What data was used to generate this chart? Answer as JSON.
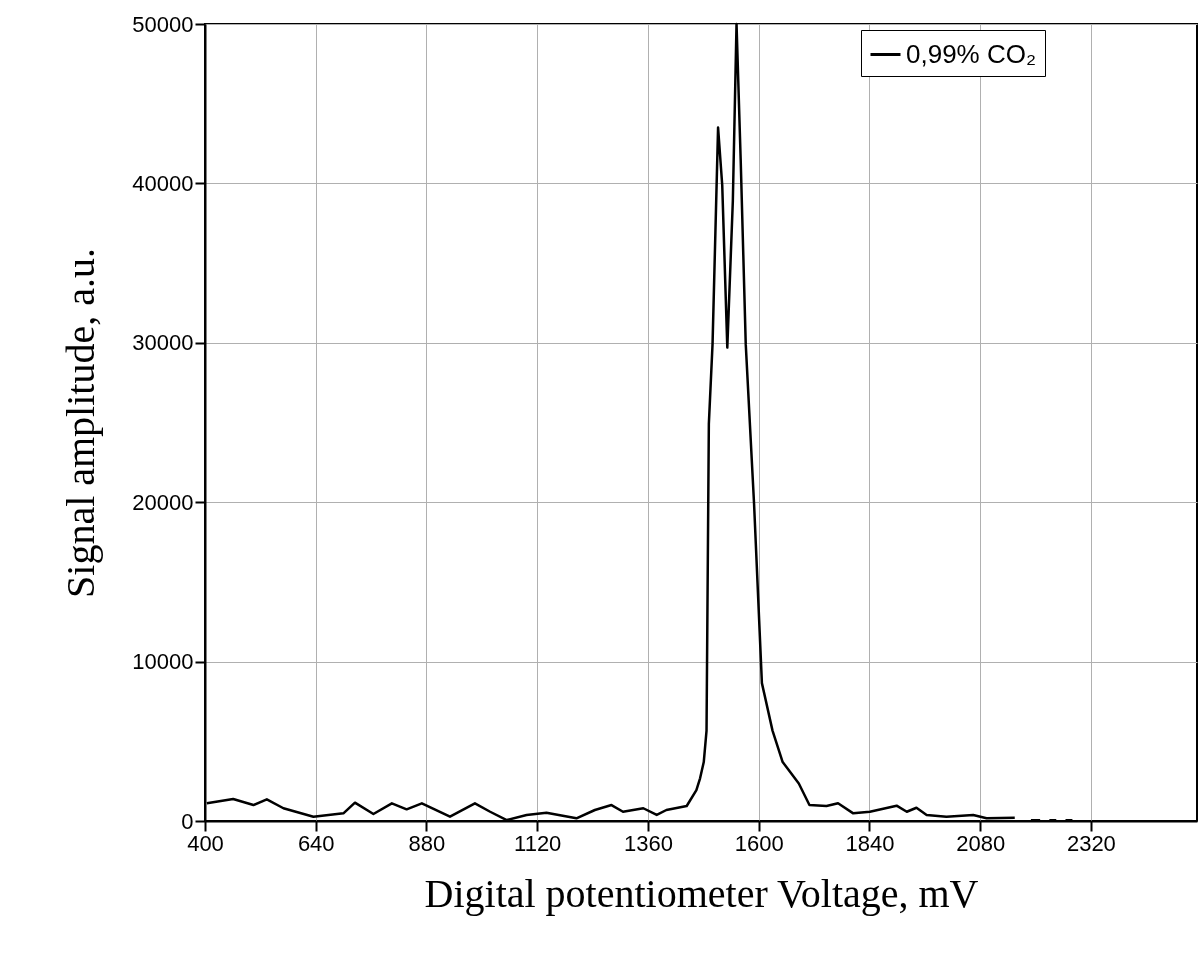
{
  "chart_data": {
    "type": "line",
    "xlabel": "Digital potentiometer Voltage, mV",
    "ylabel": "Signal amplitude, a.u.",
    "x": [
      404,
      461,
      505,
      534,
      570,
      635,
      700,
      725,
      765,
      805,
      837,
      870,
      931,
      985,
      1018,
      1054,
      1097,
      1140,
      1205,
      1245,
      1281,
      1306,
      1350,
      1379,
      1400,
      1444,
      1465,
      1473,
      1481,
      1487,
      1492,
      1500,
      1512,
      1521,
      1532,
      1544,
      1552,
      1561,
      1572,
      1590,
      1607,
      1630,
      1652,
      1687,
      1710,
      1747,
      1772,
      1805,
      1841,
      1899,
      1921,
      1942,
      1964,
      2007,
      2065,
      2094,
      2155,
      2170,
      2190,
      2210,
      2220,
      2230,
      2245,
      2255,
      2265,
      2280
    ],
    "series": [
      {
        "name": "0,99% CO₂",
        "color": "#000000",
        "values": [
          1110,
          1380,
          1000,
          1360,
          800,
          270,
          480,
          1150,
          440,
          1110,
          730,
          1110,
          270,
          1110,
          580,
          60,
          380,
          520,
          170,
          690,
          1000,
          580,
          800,
          380,
          690,
          940,
          1940,
          2680,
          3700,
          5670,
          24900,
          29900,
          43500,
          39900,
          29700,
          38900,
          50000,
          41500,
          29900,
          19900,
          8650,
          5670,
          3700,
          2350,
          1000,
          940,
          1110,
          480,
          580,
          960,
          580,
          830,
          380,
          270,
          380,
          170,
          210,
          null,
          50,
          50,
          null,
          50,
          50,
          null,
          50,
          50
        ]
      }
    ],
    "xlim": [
      400,
      2550
    ],
    "xticks": [
      400,
      640,
      880,
      1120,
      1360,
      1600,
      1840,
      2080,
      2320
    ],
    "ylim": [
      0,
      50000
    ],
    "yticks": [
      0,
      10000,
      20000,
      30000,
      40000,
      50000
    ],
    "grid": true,
    "legend": "top right",
    "line_style": "solid",
    "marker": "none"
  }
}
